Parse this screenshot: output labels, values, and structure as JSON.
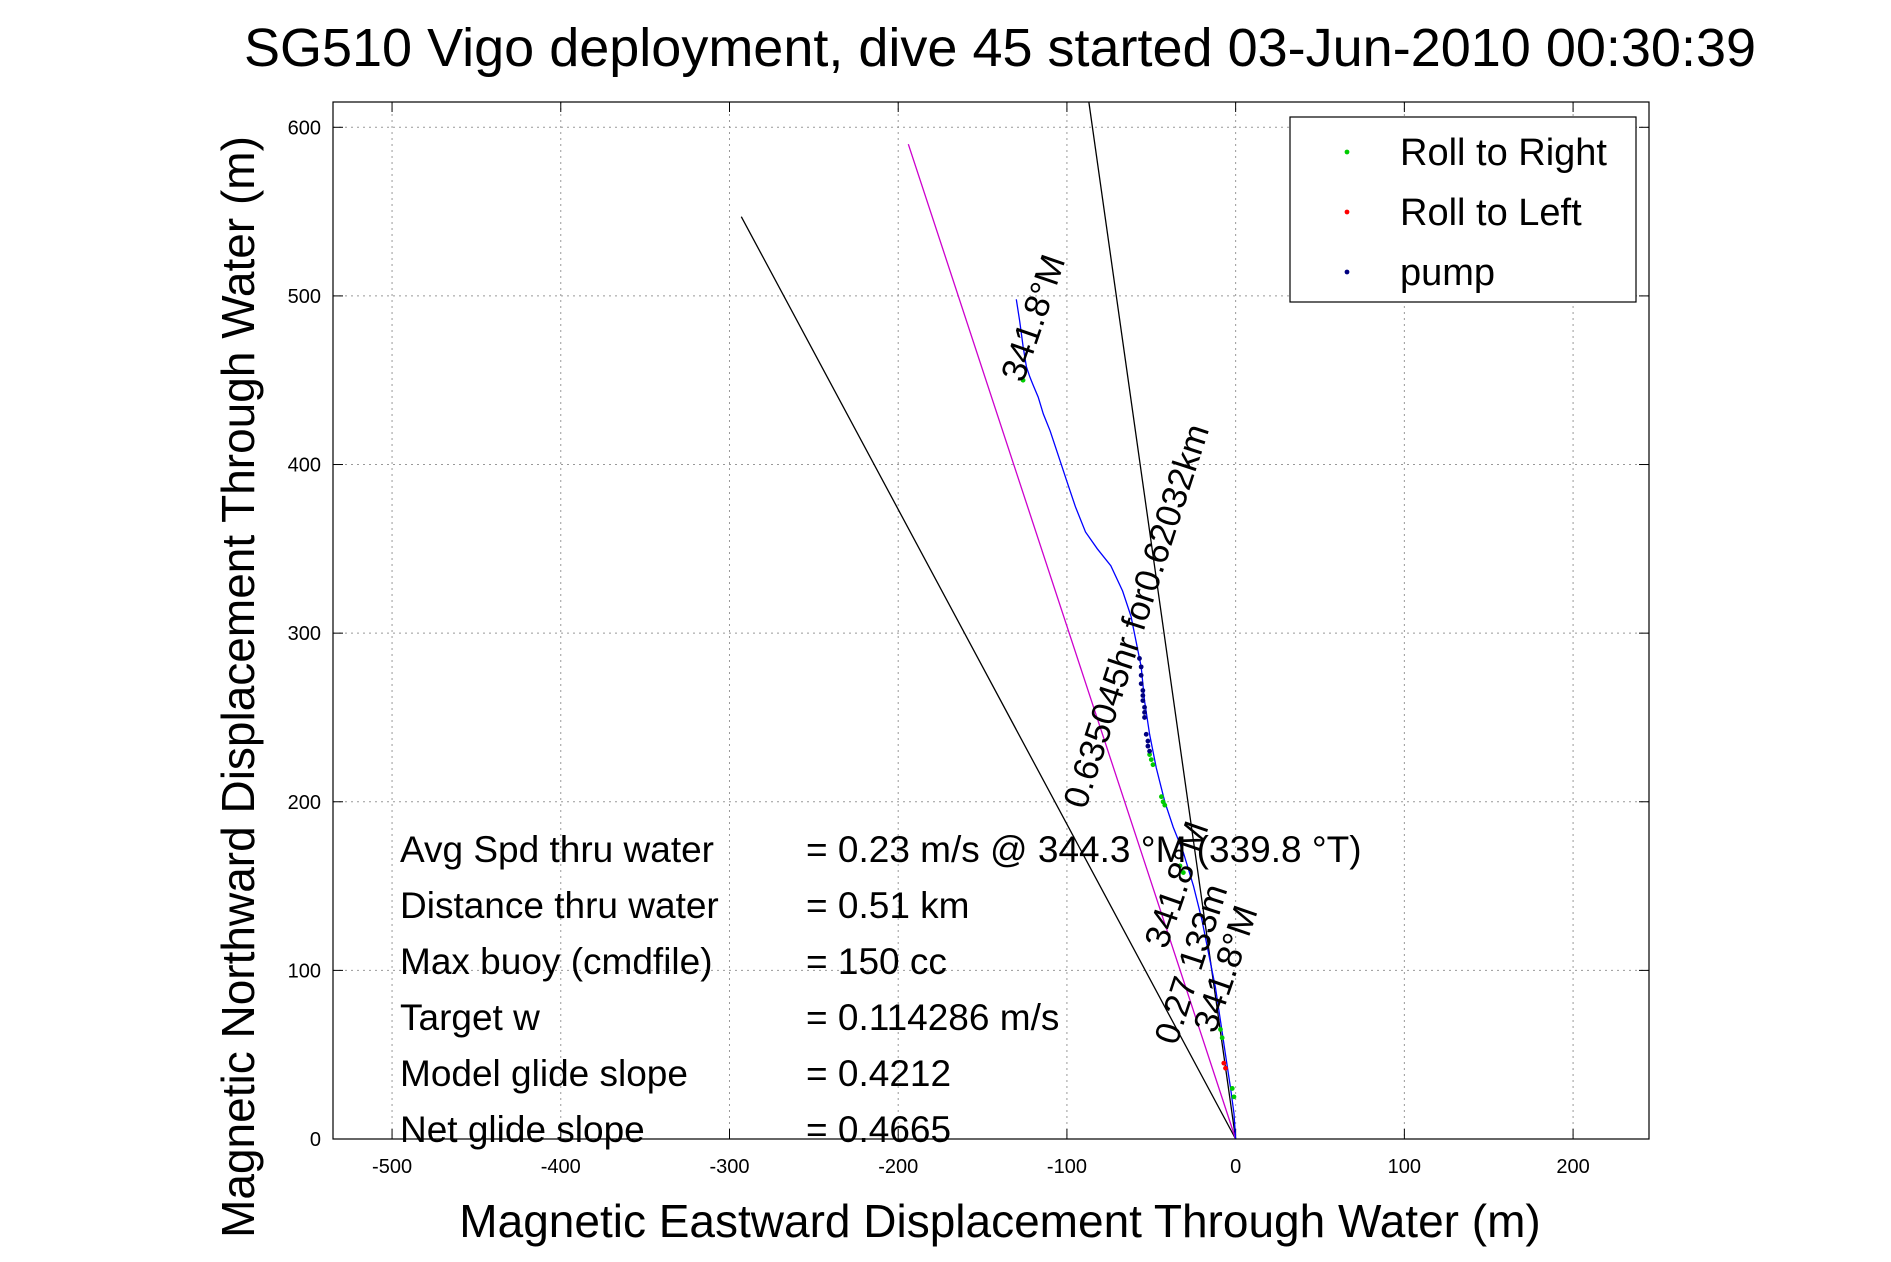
{
  "chart_data": {
    "type": "line",
    "title": "SG510 Vigo deployment, dive 45 started 03-Jun-2010 00:30:39",
    "xlabel": "Magnetic Eastward Displacement Through Water (m)",
    "ylabel": "Magnetic Northward Displacement Through Water (m)",
    "xlim": [
      -535,
      245
    ],
    "ylim": [
      0,
      615
    ],
    "xticks": [
      -500,
      -400,
      -300,
      -200,
      -100,
      0,
      100,
      200
    ],
    "yticks": [
      0,
      100,
      200,
      300,
      400,
      500,
      600
    ],
    "grid": true,
    "legend_position": "top-right",
    "legend": [
      {
        "name": "Roll to Right",
        "color": "#00cc00"
      },
      {
        "name": "Roll to Left",
        "color": "#ff0000"
      },
      {
        "name": "pump",
        "color": "#000080"
      }
    ],
    "guide_lines": [
      {
        "color": "#000000",
        "x": [
          0,
          -293
        ],
        "y": [
          0,
          547
        ]
      },
      {
        "color": "#000000",
        "x": [
          0,
          -87
        ],
        "y": [
          0,
          615
        ]
      },
      {
        "color": "#cc00cc",
        "x": [
          0,
          -194
        ],
        "y": [
          0,
          590
        ]
      }
    ],
    "trajectory": {
      "color": "#0000ff",
      "x": [
        0,
        -1,
        -3,
        -6,
        -9,
        -12,
        -16,
        -20,
        -25,
        -31,
        -37,
        -42,
        -47,
        -51,
        -54,
        -56,
        -58,
        -62,
        -67,
        -74,
        -82,
        -89,
        -95,
        -100,
        -105,
        -110,
        -114,
        -117,
        -120,
        -122,
        -124,
        -126,
        -128,
        -130
      ],
      "y": [
        0,
        15,
        30,
        50,
        70,
        90,
        110,
        130,
        150,
        170,
        185,
        200,
        220,
        240,
        260,
        280,
        290,
        310,
        325,
        340,
        350,
        360,
        375,
        390,
        405,
        420,
        430,
        440,
        447,
        452,
        458,
        470,
        485,
        498
      ]
    },
    "roll_right": {
      "x": [
        -1,
        -2,
        -8,
        -9,
        -31,
        -33,
        -42,
        -43,
        -44,
        -49,
        -50,
        -51,
        -126
      ],
      "y": [
        25,
        30,
        60,
        65,
        158,
        162,
        198,
        200,
        203,
        222,
        225,
        228,
        450
      ]
    },
    "roll_left": {
      "x": [
        -6,
        -7
      ],
      "y": [
        42,
        45
      ]
    },
    "pump": {
      "x": [
        -51,
        -52,
        -52,
        -53,
        -54,
        -54,
        -54,
        -55,
        -55,
        -55,
        -56,
        -56,
        -56,
        -57
      ],
      "y": [
        230,
        233,
        236,
        240,
        250,
        253,
        256,
        260,
        263,
        266,
        270,
        275,
        280,
        285
      ]
    },
    "trajectory_labels": [
      {
        "text": "341.8°M",
        "x": -126,
        "y": 448,
        "angle": -71
      },
      {
        "text": "0.635045hr for0.62032km",
        "x": -89,
        "y": 195,
        "angle": -72
      },
      {
        "text": "0.27 133m",
        "x": -35,
        "y": 55,
        "angle": -72
      },
      {
        "text": "341.8°M",
        "x": -41,
        "y": 112,
        "angle": -71
      },
      {
        "text": "341.8°M",
        "x": -12,
        "y": 62,
        "angle": -71
      }
    ],
    "annotations": [
      {
        "label": "Avg Spd thru water",
        "value": "=  0.23 m/s @ 344.3 °M (339.8 °T)"
      },
      {
        "label": "Distance thru water",
        "value": "=  0.51 km"
      },
      {
        "label": "Max buoy (cmdfile)",
        "value": "= 150 cc"
      },
      {
        "label": "Target w",
        "value": "= 0.114286 m/s"
      },
      {
        "label": "Model glide slope",
        "value": "= 0.4212"
      },
      {
        "label": "Net glide slope",
        "value": "= 0.4665"
      }
    ]
  }
}
